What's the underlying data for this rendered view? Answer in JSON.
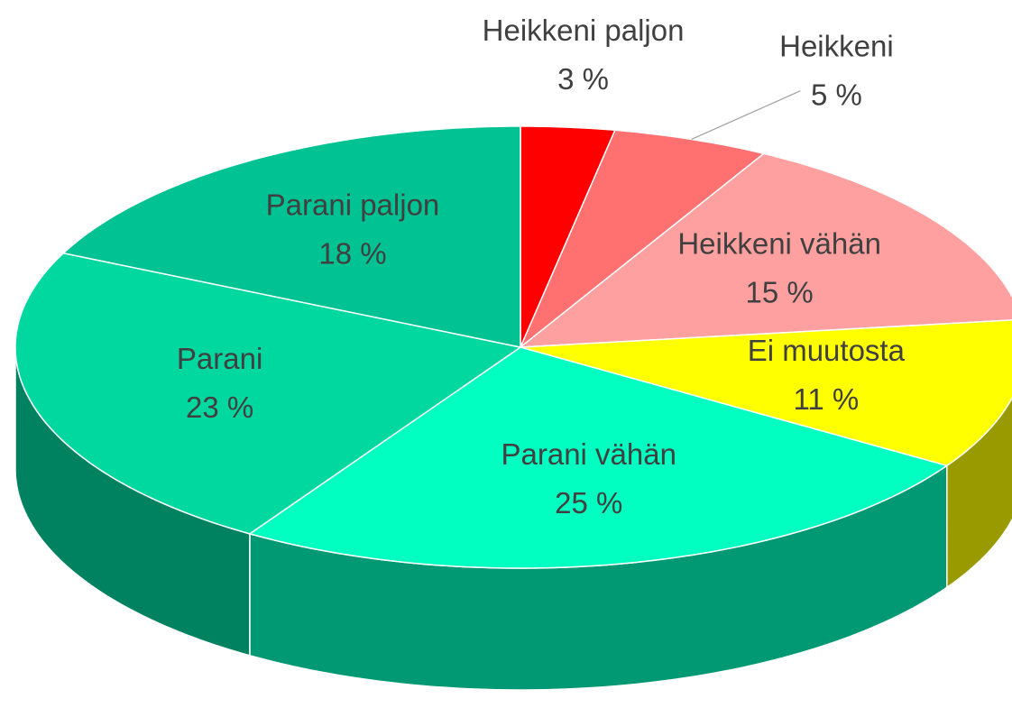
{
  "chart_data": {
    "type": "pie3d",
    "categories": [
      "Heikkeni paljon",
      "Heikkeni",
      "Heikkeni vähän",
      "Ei muutosta",
      "Parani vähän",
      "Parani",
      "Parani paljon"
    ],
    "values": [
      3,
      5,
      15,
      11,
      25,
      23,
      18
    ],
    "value_labels": [
      "3 %",
      "5 %",
      "15 %",
      "11 %",
      "25 %",
      "23 %",
      "18 %"
    ],
    "colors": [
      "#ff0000",
      "#ff7070",
      "#ffa0a0",
      "#ffff00",
      "#00ffc0",
      "#00d8a0",
      "#00c293"
    ]
  }
}
